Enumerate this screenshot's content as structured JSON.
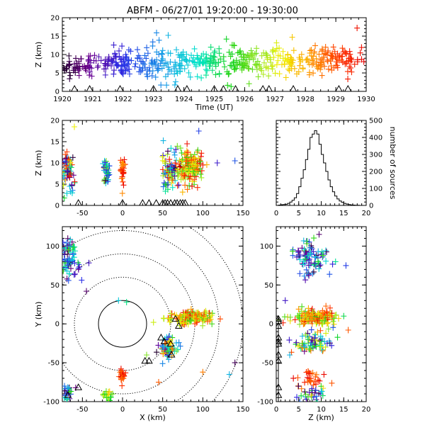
{
  "title": "ABFM - 06/27/01 19:20:00 - 19:30:00",
  "chart_data": [
    {
      "id": "time-height",
      "type": "scatter",
      "xlabel": "Time (UT)",
      "ylabel": "Z (km)",
      "xlim": [
        1920,
        1930
      ],
      "ylim": [
        0,
        20
      ],
      "xticks": [
        "1920",
        "1921",
        "1922",
        "1923",
        "1924",
        "1925",
        "1926",
        "1927",
        "1928",
        "1929",
        "1930"
      ],
      "yticks": [
        "0",
        "5",
        "10",
        "15",
        "20"
      ],
      "color_by": "time",
      "clusters": [
        {
          "x": 1920.3,
          "y": 6.8,
          "n": 34,
          "sx": 0.22,
          "sy": 1.4
        },
        {
          "x": 1920.9,
          "y": 7.3,
          "n": 30,
          "sx": 0.2,
          "sy": 1.4
        },
        {
          "x": 1921.6,
          "y": 7.6,
          "n": 22,
          "sx": 0.2,
          "sy": 1.3
        },
        {
          "x": 1922.0,
          "y": 7.5,
          "n": 40,
          "sx": 0.2,
          "sy": 2.0
        },
        {
          "x": 1922.6,
          "y": 7.8,
          "n": 30,
          "sx": 0.25,
          "sy": 2.2
        },
        {
          "x": 1923.2,
          "y": 8.0,
          "n": 40,
          "sx": 0.28,
          "sy": 2.6
        },
        {
          "x": 1923.8,
          "y": 7.8,
          "n": 36,
          "sx": 0.25,
          "sy": 2.3
        },
        {
          "x": 1924.4,
          "y": 7.6,
          "n": 34,
          "sx": 0.25,
          "sy": 2.2
        },
        {
          "x": 1925.0,
          "y": 7.8,
          "n": 36,
          "sx": 0.3,
          "sy": 2.2
        },
        {
          "x": 1925.7,
          "y": 7.9,
          "n": 40,
          "sx": 0.25,
          "sy": 2.2
        },
        {
          "x": 1926.3,
          "y": 8.2,
          "n": 34,
          "sx": 0.25,
          "sy": 1.9
        },
        {
          "x": 1926.9,
          "y": 8.4,
          "n": 34,
          "sx": 0.25,
          "sy": 2.0
        },
        {
          "x": 1927.5,
          "y": 8.4,
          "n": 36,
          "sx": 0.25,
          "sy": 2.0
        },
        {
          "x": 1928.2,
          "y": 8.5,
          "n": 40,
          "sx": 0.3,
          "sy": 2.0
        },
        {
          "x": 1928.8,
          "y": 8.6,
          "n": 40,
          "sx": 0.25,
          "sy": 2.0
        },
        {
          "x": 1929.4,
          "y": 8.6,
          "n": 34,
          "sx": 0.25,
          "sy": 1.8
        }
      ],
      "extra_points": [
        [
          1929.7,
          17.2
        ],
        [
          1923.1,
          15.9
        ],
        [
          1925.4,
          14.2
        ]
      ],
      "ground_triangles_x": [
        1920.4,
        1920.9,
        1921.9,
        1923.0,
        1923.8,
        1924.1,
        1925.0,
        1925.3,
        1925.7,
        1926.6,
        1926.8,
        1927.6,
        1929.1,
        1929.4
      ]
    },
    {
      "id": "x-height",
      "type": "scatter",
      "xlabel": "",
      "ylabel": "Z (km)",
      "xlim": [
        -75,
        150
      ],
      "ylim": [
        0,
        20
      ],
      "xticks": [
        "-50",
        "0",
        "50",
        "100",
        "150"
      ],
      "yticks": [
        "0",
        "5",
        "10",
        "15",
        "20"
      ],
      "clusters": [
        {
          "x": -68,
          "y": 8.5,
          "n": 70,
          "sx": 4,
          "sy": 2.0,
          "t0": 0.0,
          "t1": 1.0
        },
        {
          "x": -20,
          "y": 8.0,
          "n": 40,
          "sx": 2,
          "sy": 1.5,
          "t0": 0.0,
          "t1": 0.7
        },
        {
          "x": 0,
          "y": 8.0,
          "n": 30,
          "sx": 1.5,
          "sy": 1.6,
          "t0": 0.8,
          "t1": 1.0
        },
        {
          "x": 60,
          "y": 8.2,
          "n": 90,
          "sx": 6,
          "sy": 2.0,
          "t0": 0.0,
          "t1": 1.0
        },
        {
          "x": 85,
          "y": 9.0,
          "n": 160,
          "sx": 8,
          "sy": 2.0,
          "t0": 0.55,
          "t1": 1.0
        }
      ],
      "extra_points": [
        [
          95,
          17.5
        ],
        [
          140,
          10.5
        ],
        [
          118,
          10.0
        ],
        [
          -60,
          18.5
        ]
      ],
      "ground_triangles_x": [
        -55,
        0,
        25,
        33,
        42,
        50,
        53,
        56,
        60,
        65,
        68,
        72,
        75,
        78
      ]
    },
    {
      "id": "height-histogram",
      "type": "bar",
      "xlabel": "",
      "ylabel": "number of sources",
      "xlim": [
        0,
        20
      ],
      "ylim": [
        0,
        500
      ],
      "xticks": [
        "0",
        "5",
        "10",
        "15",
        "20"
      ],
      "yticks": [
        "0",
        "100",
        "200",
        "300",
        "400",
        "500"
      ],
      "bin_width": 0.5,
      "bin_start": 0,
      "values": [
        0,
        2,
        4,
        5,
        7,
        12,
        20,
        30,
        45,
        70,
        110,
        160,
        210,
        270,
        330,
        400,
        420,
        440,
        420,
        360,
        300,
        250,
        200,
        150,
        110,
        80,
        55,
        38,
        26,
        18,
        12,
        8,
        5,
        3,
        2,
        1,
        1,
        0,
        0,
        0
      ]
    },
    {
      "id": "plan-view",
      "type": "scatter",
      "xlabel": "X (km)",
      "ylabel": "Y (km)",
      "xlim": [
        -75,
        150
      ],
      "ylim": [
        -100,
        125
      ],
      "xticks": [
        "-50",
        "0",
        "50",
        "100",
        "150"
      ],
      "yticks": [
        "-100",
        "-50",
        "0",
        "50",
        "100"
      ],
      "range_rings_km": [
        30,
        60,
        90,
        120,
        150
      ],
      "range_ring_center": [
        0,
        0
      ],
      "clusters": [
        {
          "x": -68,
          "y": 85,
          "n": 70,
          "sx": 5,
          "sy": 12,
          "t0": 0.0,
          "t1": 0.6
        },
        {
          "x": -55,
          "y": 60,
          "n": 6,
          "sx": 8,
          "sy": 8,
          "t0": 0.0,
          "t1": 0.3
        },
        {
          "x": -70,
          "y": -88,
          "n": 25,
          "sx": 4,
          "sy": 6,
          "t0": 0.0,
          "t1": 0.6
        },
        {
          "x": -20,
          "y": -92,
          "n": 20,
          "sx": 3,
          "sy": 6,
          "t0": 0.5,
          "t1": 0.8
        },
        {
          "x": 0,
          "y": -67,
          "n": 25,
          "sx": 2,
          "sy": 4,
          "t0": 0.85,
          "t1": 1.0
        },
        {
          "x": 57,
          "y": -30,
          "n": 70,
          "sx": 6,
          "sy": 7,
          "t0": 0.0,
          "t1": 0.9
        },
        {
          "x": 85,
          "y": 8,
          "n": 160,
          "sx": 14,
          "sy": 4,
          "t0": 0.55,
          "t1": 1.0
        }
      ],
      "extra_points": [
        [
          -45,
          42
        ],
        [
          5,
          28
        ],
        [
          -5,
          30
        ],
        [
          100,
          -62
        ],
        [
          140,
          -50
        ],
        [
          133,
          -65
        ],
        [
          45,
          -75
        ],
        [
          30,
          -40
        ]
      ],
      "sensor_triangles": [
        [
          66,
          6
        ],
        [
          70,
          -3
        ],
        [
          48,
          -18
        ],
        [
          52,
          -23
        ],
        [
          60,
          -26
        ],
        [
          28,
          -48
        ],
        [
          33,
          -48
        ],
        [
          -55,
          -82
        ],
        [
          -68,
          -92
        ],
        [
          61,
          -40
        ]
      ]
    },
    {
      "id": "height-y",
      "type": "scatter",
      "xlabel": "Z (km)",
      "ylabel": "",
      "xlim": [
        0,
        20
      ],
      "ylim": [
        -100,
        125
      ],
      "xticks": [
        "0",
        "5",
        "10",
        "15",
        "20"
      ],
      "yticks": [
        "-100",
        "-50",
        "0",
        "50",
        "100"
      ],
      "clusters": [
        {
          "x": 7.5,
          "y": 85,
          "n": 90,
          "sx": 2.0,
          "sy": 12,
          "t0": 0.0,
          "t1": 0.6
        },
        {
          "x": 8.5,
          "y": 8,
          "n": 170,
          "sx": 2.5,
          "sy": 5,
          "t0": 0.55,
          "t1": 1.0
        },
        {
          "x": 8.0,
          "y": -25,
          "n": 80,
          "sx": 2.3,
          "sy": 7,
          "t0": 0.0,
          "t1": 0.9
        },
        {
          "x": 8.0,
          "y": -70,
          "n": 30,
          "sx": 1.5,
          "sy": 5,
          "t0": 0.85,
          "t1": 1.0
        },
        {
          "x": 8.0,
          "y": -92,
          "n": 35,
          "sx": 2,
          "sy": 6,
          "t0": 0.0,
          "t1": 0.8
        }
      ],
      "extra_points": [
        [
          15.5,
          75
        ],
        [
          16,
          -8
        ],
        [
          15,
          10
        ],
        [
          2,
          30
        ],
        [
          3,
          -40
        ],
        [
          0.5,
          5
        ]
      ],
      "ground_triangles_y": [
        6,
        -3,
        -18,
        -23,
        -26,
        -40,
        -48,
        -82,
        -92,
        3
      ]
    }
  ]
}
